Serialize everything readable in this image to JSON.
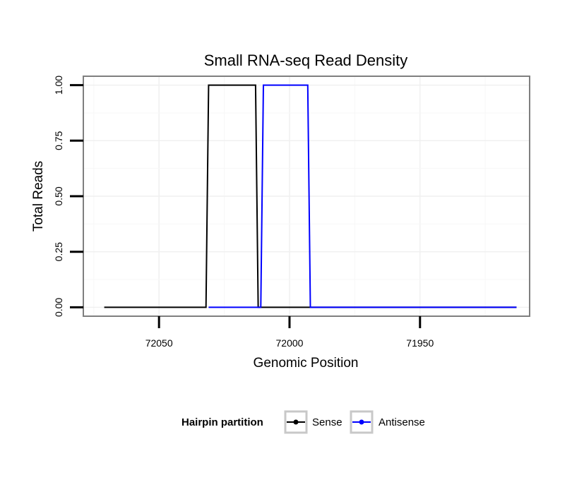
{
  "chart_data": {
    "type": "line",
    "title": "Small RNA-seq Read Density",
    "xlabel": "Genomic Position",
    "ylabel": "Total Reads",
    "x_reversed": true,
    "xlim": [
      72079,
      71908
    ],
    "ylim": [
      -0.04,
      1.04
    ],
    "x_ticks": [
      72050,
      72000,
      71950
    ],
    "x_tick_labels": [
      "72050",
      "72000",
      71950
    ],
    "y_ticks": [
      0,
      0.25,
      0.5,
      0.75,
      1.0
    ],
    "y_tick_labels": [
      "0.00",
      "0.25",
      "0.50",
      "0.75",
      "1.00"
    ],
    "grid": true,
    "legend": {
      "title": "Hairpin partition",
      "position": "bottom"
    },
    "series": [
      {
        "name": "Sense",
        "color": "#000000",
        "points": [
          [
            72071,
            0
          ],
          [
            72032,
            0
          ],
          [
            72031,
            1
          ],
          [
            72013,
            1
          ],
          [
            72012,
            0
          ],
          [
            71913,
            0
          ]
        ]
      },
      {
        "name": "Antisense",
        "color": "#0000ff",
        "points": [
          [
            72031,
            0
          ],
          [
            72011,
            0
          ],
          [
            72010,
            1
          ],
          [
            71993,
            1
          ],
          [
            71992,
            0
          ],
          [
            71913,
            0
          ]
        ]
      }
    ]
  }
}
